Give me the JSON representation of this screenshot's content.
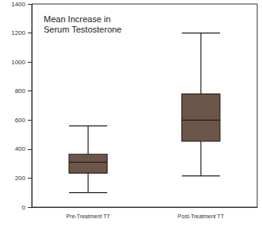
{
  "chart_data": {
    "type": "boxplot",
    "title": "Mean Increase in Serum Testosterone",
    "categories": [
      "Pre-Treatment TT",
      "Post-Treatment TT"
    ],
    "values": [
      [
        100,
        235,
        310,
        365,
        560
      ],
      [
        215,
        455,
        600,
        780,
        1200
      ]
    ],
    "color": "#6b5649",
    "ylim": [
      0,
      1400
    ],
    "yticks": [
      0,
      200,
      400,
      600,
      800,
      1000,
      1200,
      1400
    ],
    "grid": false
  }
}
